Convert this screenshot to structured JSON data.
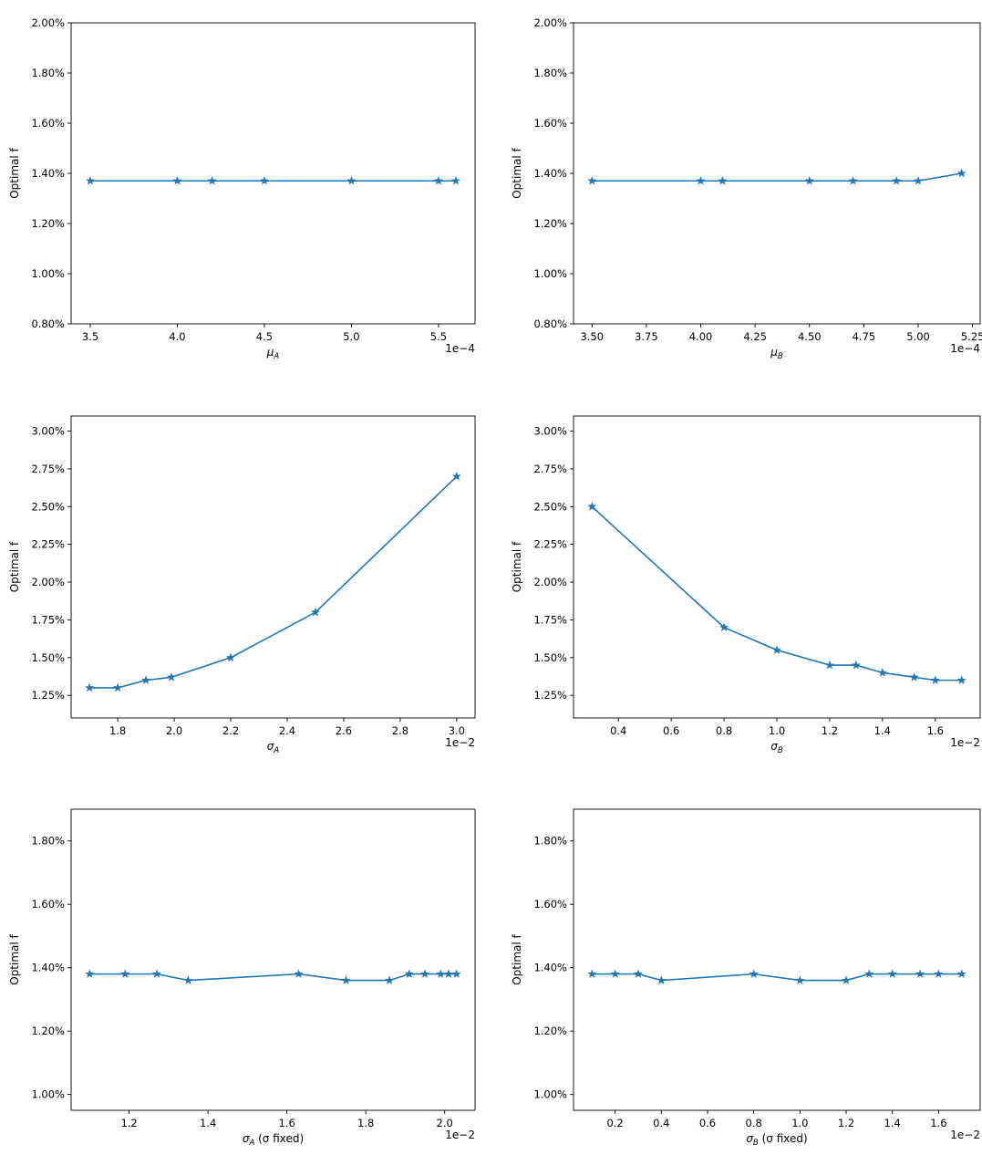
{
  "chart_data": [
    {
      "type": "line",
      "xlabel": "μ",
      "xlabel_sub": "A",
      "xlabel_suffix": "",
      "ylabel": "Optimal f",
      "x_offset_label": "1e−4",
      "x": [
        3.5,
        4.0,
        4.2,
        4.5,
        5.0,
        5.5,
        5.6
      ],
      "y": [
        1.37,
        1.37,
        1.37,
        1.37,
        1.37,
        1.37,
        1.37
      ],
      "xlim": [
        3.39,
        5.71
      ],
      "ylim": [
        0.8,
        2.0
      ],
      "xticks": [
        "3.5",
        "4.0",
        "4.5",
        "5.0",
        "5.5"
      ],
      "xtick_values": [
        3.5,
        4.0,
        4.5,
        5.0,
        5.5
      ],
      "yticks": [
        "0.80%",
        "1.00%",
        "1.20%",
        "1.40%",
        "1.60%",
        "1.80%",
        "2.00%"
      ],
      "ytick_values": [
        0.8,
        1.0,
        1.2,
        1.4,
        1.6,
        1.8,
        2.0
      ],
      "marker": "star",
      "color": "#1f77b4",
      "grid": false
    },
    {
      "type": "line",
      "xlabel": "μ",
      "xlabel_sub": "B",
      "xlabel_suffix": "",
      "ylabel": "Optimal f",
      "x_offset_label": "1e−4",
      "x": [
        3.5,
        4.0,
        4.1,
        4.5,
        4.7,
        4.9,
        5.0,
        5.2
      ],
      "y": [
        1.37,
        1.37,
        1.37,
        1.37,
        1.37,
        1.37,
        1.37,
        1.4
      ],
      "xlim": [
        3.415,
        5.285
      ],
      "ylim": [
        0.8,
        2.0
      ],
      "xticks": [
        "3.50",
        "3.75",
        "4.00",
        "4.25",
        "4.50",
        "4.75",
        "5.00",
        "5.25"
      ],
      "xtick_values": [
        3.5,
        3.75,
        4.0,
        4.25,
        4.5,
        4.75,
        5.0,
        5.25
      ],
      "yticks": [
        "0.80%",
        "1.00%",
        "1.20%",
        "1.40%",
        "1.60%",
        "1.80%",
        "2.00%"
      ],
      "ytick_values": [
        0.8,
        1.0,
        1.2,
        1.4,
        1.6,
        1.8,
        2.0
      ],
      "marker": "star",
      "color": "#1f77b4",
      "grid": false
    },
    {
      "type": "line",
      "xlabel": "σ",
      "xlabel_sub": "A",
      "xlabel_suffix": "",
      "ylabel": "Optimal f",
      "x_offset_label": "1e−2",
      "x": [
        1.7,
        1.8,
        1.9,
        1.99,
        2.2,
        2.5,
        3.0
      ],
      "y": [
        1.3,
        1.3,
        1.35,
        1.37,
        1.5,
        1.8,
        2.7
      ],
      "xlim": [
        1.635,
        3.065
      ],
      "ylim": [
        1.1,
        3.1
      ],
      "xticks": [
        "1.8",
        "2.0",
        "2.2",
        "2.4",
        "2.6",
        "2.8",
        "3.0"
      ],
      "xtick_values": [
        1.8,
        2.0,
        2.2,
        2.4,
        2.6,
        2.8,
        3.0
      ],
      "yticks": [
        "1.25%",
        "1.50%",
        "1.75%",
        "2.00%",
        "2.25%",
        "2.50%",
        "2.75%",
        "3.00%"
      ],
      "ytick_values": [
        1.25,
        1.5,
        1.75,
        2.0,
        2.25,
        2.5,
        2.75,
        3.0
      ],
      "marker": "star",
      "color": "#1f77b4",
      "grid": false
    },
    {
      "type": "line",
      "xlabel": "σ",
      "xlabel_sub": "B",
      "xlabel_suffix": "",
      "ylabel": "Optimal f",
      "x_offset_label": "1e−2",
      "x": [
        0.3,
        0.8,
        1.0,
        1.2,
        1.3,
        1.4,
        1.52,
        1.6,
        1.7
      ],
      "y": [
        2.5,
        1.7,
        1.55,
        1.45,
        1.45,
        1.4,
        1.37,
        1.35,
        1.35
      ],
      "xlim": [
        0.23,
        1.77
      ],
      "ylim": [
        1.1,
        3.1
      ],
      "xticks": [
        "0.4",
        "0.6",
        "0.8",
        "1.0",
        "1.2",
        "1.4",
        "1.6"
      ],
      "xtick_values": [
        0.4,
        0.6,
        0.8,
        1.0,
        1.2,
        1.4,
        1.6
      ],
      "yticks": [
        "1.25%",
        "1.50%",
        "1.75%",
        "2.00%",
        "2.25%",
        "2.50%",
        "2.75%",
        "3.00%"
      ],
      "ytick_values": [
        1.25,
        1.5,
        1.75,
        2.0,
        2.25,
        2.5,
        2.75,
        3.0
      ],
      "marker": "star",
      "color": "#1f77b4",
      "grid": false
    },
    {
      "type": "line",
      "xlabel": "σ",
      "xlabel_sub": "A",
      "xlabel_suffix": " (σ fixed)",
      "ylabel": "Optimal f",
      "x_offset_label": "1e−2",
      "x": [
        1.1,
        1.19,
        1.27,
        1.35,
        1.63,
        1.75,
        1.86,
        1.91,
        1.95,
        1.99,
        2.01,
        2.03
      ],
      "y": [
        1.38,
        1.38,
        1.38,
        1.36,
        1.38,
        1.36,
        1.36,
        1.38,
        1.38,
        1.38,
        1.38,
        1.38
      ],
      "xlim": [
        1.053,
        2.077
      ],
      "ylim": [
        0.95,
        1.9
      ],
      "xticks": [
        "1.2",
        "1.4",
        "1.6",
        "1.8",
        "2.0"
      ],
      "xtick_values": [
        1.2,
        1.4,
        1.6,
        1.8,
        2.0
      ],
      "yticks": [
        "1.00%",
        "1.20%",
        "1.40%",
        "1.60%",
        "1.80%"
      ],
      "ytick_values": [
        1.0,
        1.2,
        1.4,
        1.6,
        1.8
      ],
      "marker": "star",
      "color": "#1f77b4",
      "grid": false
    },
    {
      "type": "line",
      "xlabel": "σ",
      "xlabel_sub": "B",
      "xlabel_suffix": " (σ fixed)",
      "ylabel": "Optimal f",
      "x_offset_label": "1e−2",
      "x": [
        0.1,
        0.2,
        0.3,
        0.4,
        0.8,
        1.0,
        1.2,
        1.3,
        1.4,
        1.52,
        1.6,
        1.7
      ],
      "y": [
        1.38,
        1.38,
        1.38,
        1.36,
        1.38,
        1.36,
        1.36,
        1.38,
        1.38,
        1.38,
        1.38,
        1.38
      ],
      "xlim": [
        0.02,
        1.78
      ],
      "ylim": [
        0.95,
        1.9
      ],
      "xticks": [
        "0.2",
        "0.4",
        "0.6",
        "0.8",
        "1.0",
        "1.2",
        "1.4",
        "1.6"
      ],
      "xtick_values": [
        0.2,
        0.4,
        0.6,
        0.8,
        1.0,
        1.2,
        1.4,
        1.6
      ],
      "yticks": [
        "1.00%",
        "1.20%",
        "1.40%",
        "1.60%",
        "1.80%"
      ],
      "ytick_values": [
        1.0,
        1.2,
        1.4,
        1.6,
        1.8
      ],
      "marker": "star",
      "color": "#1f77b4",
      "grid": false
    }
  ]
}
